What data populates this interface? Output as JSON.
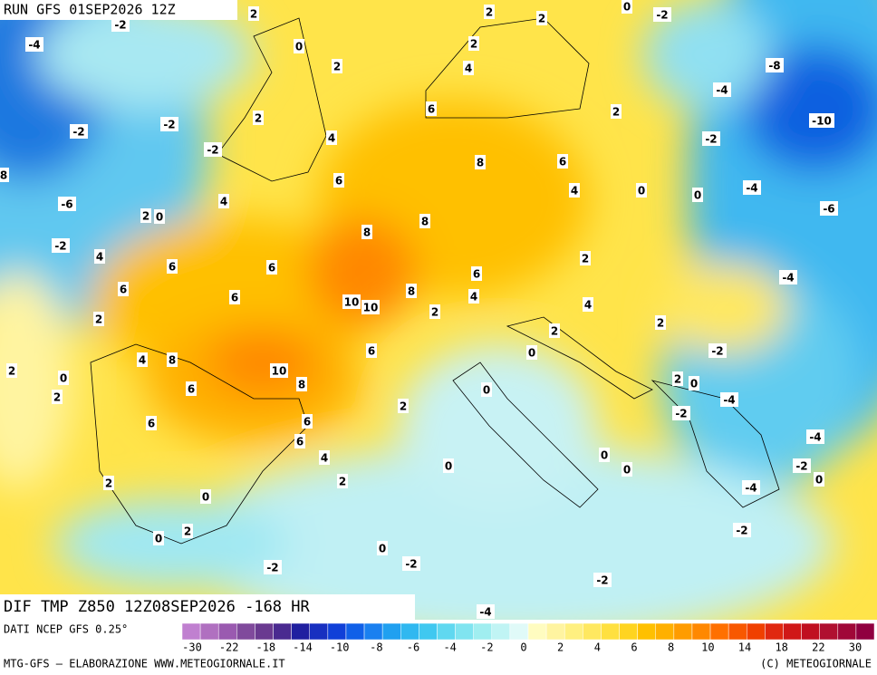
{
  "header": {
    "run": "RUN GFS 01SEP2026 12Z"
  },
  "map": {
    "field_title": "DIF TMP Z850 12Z08SEP2026 -168 HR",
    "labels": [
      -2,
      -4,
      2,
      0,
      2,
      2,
      2,
      0,
      -2,
      2,
      4,
      -8,
      -4,
      -10,
      -2,
      2,
      -2,
      6,
      2,
      -2,
      4,
      -2,
      8,
      6,
      8,
      6,
      4,
      0,
      -4,
      0,
      -6,
      4,
      2,
      0,
      8,
      -6,
      -2,
      4,
      8,
      2,
      6,
      6,
      6,
      -4,
      6,
      6,
      8,
      4,
      10,
      10,
      4,
      2,
      2,
      2,
      2,
      -2,
      0,
      6,
      4,
      8,
      2,
      0,
      10,
      8,
      2,
      0,
      6,
      0,
      -4,
      2,
      2,
      -2,
      6,
      6,
      -4,
      6,
      4,
      0,
      0,
      0,
      -2,
      0,
      2,
      2,
      -4,
      0,
      -2,
      2,
      0,
      0,
      -2,
      -2,
      -2,
      -4
    ]
  },
  "colorbar": {
    "ticks": [
      -30,
      -22,
      -18,
      -14,
      -10,
      -8,
      -6,
      -4,
      -2,
      0,
      2,
      4,
      6,
      8,
      10,
      14,
      18,
      22,
      30
    ],
    "colors": [
      "#c080d0",
      "#b070c0",
      "#9a5ab0",
      "#804a9c",
      "#6a3a90",
      "#4a2a90",
      "#2020a0",
      "#1830c0",
      "#1040d8",
      "#1060e8",
      "#1a80f0",
      "#20a0f0",
      "#30b8f0",
      "#40c8f0",
      "#60d8f0",
      "#80e4f0",
      "#a0eef0",
      "#c0f4f4",
      "#e0faf8",
      "#fffcc0",
      "#fff4a0",
      "#fff080",
      "#ffe860",
      "#ffe040",
      "#ffd420",
      "#ffc000",
      "#ffb000",
      "#ff9c00",
      "#ff8800",
      "#ff7000",
      "#f85800",
      "#f04000",
      "#e02810",
      "#d01818",
      "#c01020",
      "#b01030",
      "#a00838",
      "#900040"
    ]
  },
  "footer": {
    "source": "DATI NCEP GFS 0.25°",
    "credit": "MTG-GFS – ELABORAZIONE WWW.METEOGIORNALE.IT",
    "copyright": "(C) METEOGIORNALE"
  }
}
